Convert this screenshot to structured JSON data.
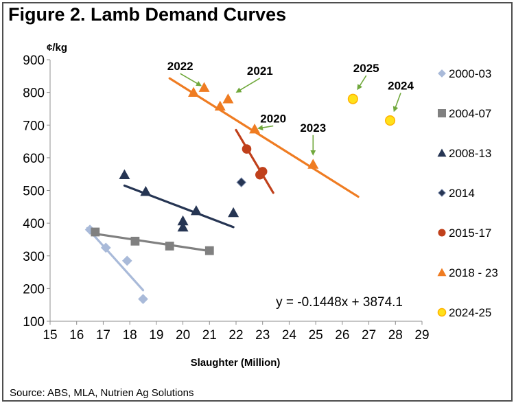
{
  "figure_title": "Figure 2. Lamb Demand Curves",
  "source": "Source: ABS, MLA, Nutrien Ag Solutions",
  "chart_data": {
    "type": "scatter",
    "title": "Figure 2. Lamb Demand Curves",
    "xlabel": "Slaughter (Million)",
    "ylabel": "¢/kg",
    "xlim": [
      15,
      29
    ],
    "ylim": [
      100,
      900
    ],
    "xticks": [
      15,
      16,
      17,
      18,
      19,
      20,
      21,
      22,
      23,
      24,
      25,
      26,
      27,
      28,
      29
    ],
    "yticks": [
      100,
      200,
      300,
      400,
      500,
      600,
      700,
      800,
      900
    ],
    "grid": false,
    "legend_position": "right",
    "equation": "y = -0.1448x + 3874.1",
    "series": [
      {
        "name": "2000-03",
        "marker": "diamond",
        "color": "#a9bad9",
        "points": [
          [
            16.5,
            380
          ],
          [
            17.1,
            325
          ],
          [
            17.9,
            285
          ],
          [
            18.5,
            168
          ]
        ],
        "trend": [
          [
            16.4,
            385
          ],
          [
            18.5,
            195
          ]
        ]
      },
      {
        "name": "2004-07",
        "marker": "square",
        "color": "#808080",
        "points": [
          [
            16.7,
            373
          ],
          [
            18.2,
            345
          ],
          [
            19.5,
            330
          ],
          [
            21.0,
            316
          ]
        ],
        "trend": [
          [
            16.5,
            370
          ],
          [
            21.0,
            315
          ]
        ]
      },
      {
        "name": "2008-13",
        "marker": "triangle",
        "color": "#263553",
        "points": [
          [
            17.8,
            548
          ],
          [
            18.6,
            497
          ],
          [
            20.0,
            407
          ],
          [
            20.0,
            388
          ],
          [
            20.5,
            438
          ],
          [
            21.9,
            432
          ]
        ],
        "trend": [
          [
            17.8,
            515
          ],
          [
            21.9,
            388
          ]
        ]
      },
      {
        "name": "2014",
        "marker": "diamond",
        "color": "#263553",
        "points": [
          [
            22.2,
            525
          ]
        ]
      },
      {
        "name": "2015-17",
        "marker": "circle",
        "color": "#c0401b",
        "points": [
          [
            22.4,
            627
          ],
          [
            23.0,
            558
          ],
          [
            22.9,
            548
          ]
        ],
        "trend": [
          [
            22.0,
            685
          ],
          [
            23.4,
            493
          ]
        ]
      },
      {
        "name": "2018 - 23",
        "marker": "triangle",
        "color": "#ef7c22",
        "points": [
          [
            20.4,
            800
          ],
          [
            20.8,
            815
          ],
          [
            21.4,
            758
          ],
          [
            21.7,
            780
          ],
          [
            22.7,
            688
          ],
          [
            24.9,
            580
          ]
        ],
        "trend": [
          [
            19.5,
            843
          ],
          [
            26.6,
            481
          ]
        ]
      },
      {
        "name": "2024-25",
        "marker": "circle",
        "color": "#ffe11a",
        "points": [
          [
            26.4,
            780
          ],
          [
            27.8,
            714
          ]
        ]
      }
    ],
    "annotations": [
      {
        "text": "2022",
        "label_at": [
          19.9,
          868
        ],
        "arrow_to": [
          20.8,
          815
        ]
      },
      {
        "text": "2021",
        "label_at": [
          22.9,
          854
        ],
        "arrow_to": [
          21.9,
          795
        ]
      },
      {
        "text": "2020",
        "label_at": [
          23.4,
          708
        ],
        "arrow_to": [
          22.7,
          688
        ]
      },
      {
        "text": "2023",
        "label_at": [
          24.9,
          680
        ],
        "arrow_to": [
          24.9,
          598
        ]
      },
      {
        "text": "2025",
        "label_at": [
          26.9,
          862
        ],
        "arrow_to": [
          26.5,
          800
        ]
      },
      {
        "text": "2024",
        "label_at": [
          28.2,
          809
        ],
        "arrow_to": [
          27.9,
          732
        ]
      }
    ]
  }
}
